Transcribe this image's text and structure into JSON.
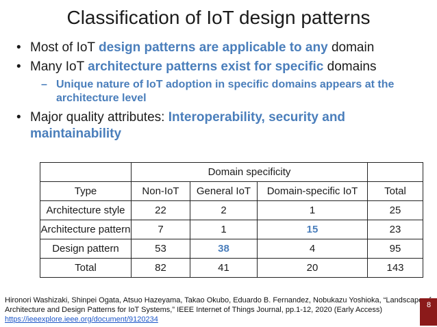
{
  "title": "Classification of IoT design patterns",
  "bullets": [
    {
      "segments": [
        "Most of IoT ",
        "design patterns are applicable to any",
        " domain"
      ]
    },
    {
      "segments": [
        "Many IoT ",
        "architecture patterns exist for specific",
        " domains"
      ],
      "sub": "Unique nature of IoT adoption in specific domains appears at the architecture level"
    },
    {
      "segments": [
        "Major quality attributes: ",
        "Interoperability, security and maintainability"
      ]
    }
  ],
  "table": {
    "group_header": "Domain specificity",
    "header": [
      "Type",
      "Non-IoT",
      "General IoT",
      "Domain-specific IoT",
      "Total"
    ],
    "rows": [
      [
        "Architecture style",
        22,
        2,
        1,
        25
      ],
      [
        "Architecture pattern",
        7,
        1,
        15,
        23
      ],
      [
        "Design pattern",
        53,
        38,
        4,
        95
      ],
      [
        "Total",
        82,
        41,
        20,
        143
      ]
    ]
  },
  "reference": {
    "text": "Hironori Washizaki, Shinpei Ogata, Atsuo Hazeyama, Takao Okubo, Eduardo B. Fernandez, Nobukazu Yoshioka, “Landscape of Architecture and Design Patterns for IoT Systems,” IEEE Internet of Things Journal, pp.1-12, 2020 (Early Access)",
    "link": "https://ieeexplore.ieee.org/document/9120234"
  },
  "page_number": "8"
}
